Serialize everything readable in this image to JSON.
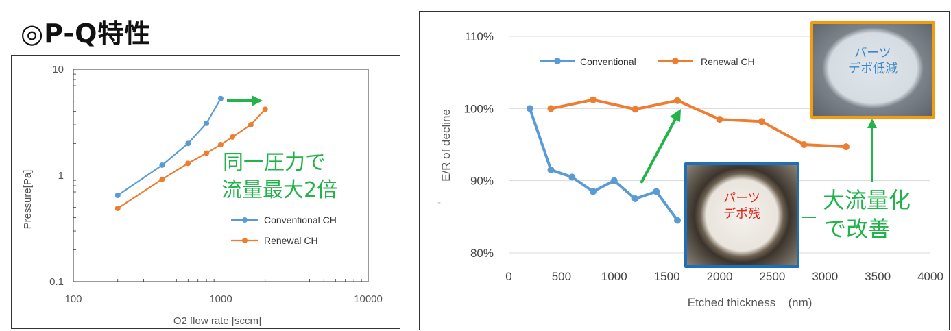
{
  "title": "◎P-Q特性",
  "colors": {
    "blue": "#5b9bd5",
    "orange": "#ed7d31",
    "green": "#22b34a",
    "photo_border_blue": "#1f6fb8",
    "photo_border_orange": "#f39c12"
  },
  "chart_data": [
    {
      "type": "line",
      "title": "",
      "xlabel": "O2 flow rate [sccm]",
      "ylabel": "Pressure[Pa]",
      "x_scale": "log",
      "y_scale": "log",
      "xlim": [
        100,
        10000
      ],
      "ylim": [
        0.1,
        10
      ],
      "x_ticks": [
        "100",
        "1000",
        "10000"
      ],
      "y_ticks": [
        "0.1",
        "1",
        "10"
      ],
      "legend_position": "bottom-right",
      "series": [
        {
          "name": "Conventional CH",
          "color": "#5b9bd5",
          "x": [
            200,
            400,
            600,
            800,
            1000
          ],
          "y": [
            0.65,
            1.25,
            2.0,
            3.1,
            5.3
          ]
        },
        {
          "name": "Renewal CH",
          "color": "#ed7d31",
          "x": [
            200,
            400,
            600,
            800,
            1000,
            1200,
            1600,
            2000
          ],
          "y": [
            0.49,
            0.92,
            1.3,
            1.62,
            1.95,
            2.3,
            3.0,
            4.2
          ]
        }
      ],
      "annotations": [
        "同一圧力で",
        "流量最大2倍"
      ]
    },
    {
      "type": "line",
      "title": "",
      "xlabel": "Etched thickness",
      "xunit": "(nm)",
      "ylabel": "E/R of decline",
      "xlim": [
        0,
        4000
      ],
      "ylim": [
        80,
        110
      ],
      "x_ticks": [
        "0",
        "500",
        "1000",
        "1500",
        "2000",
        "2500",
        "3000",
        "3500",
        "4000"
      ],
      "y_ticks": [
        "80%",
        "90%",
        "100%",
        "110%"
      ],
      "grid": true,
      "legend_position": "top",
      "series": [
        {
          "name": "Conventional",
          "color": "#5b9bd5",
          "x": [
            200,
            400,
            600,
            800,
            1000,
            1200,
            1400,
            1600
          ],
          "y": [
            100,
            91.5,
            90.5,
            88.5,
            90,
            87.5,
            88.5,
            84.5
          ]
        },
        {
          "name": "Renewal CH",
          "color": "#ed7d31",
          "x": [
            400,
            800,
            1200,
            1600,
            2000,
            2400,
            2800,
            3200
          ],
          "y": [
            100,
            101.2,
            99.9,
            101.1,
            98.5,
            98.2,
            95,
            94.7
          ]
        }
      ],
      "photo_labels": {
        "residue": [
          "パーツ",
          "デポ残"
        ],
        "reduced": [
          "パーツ",
          "デポ低減"
        ]
      },
      "annotations": [
        "大流量化",
        "で改善"
      ]
    }
  ]
}
